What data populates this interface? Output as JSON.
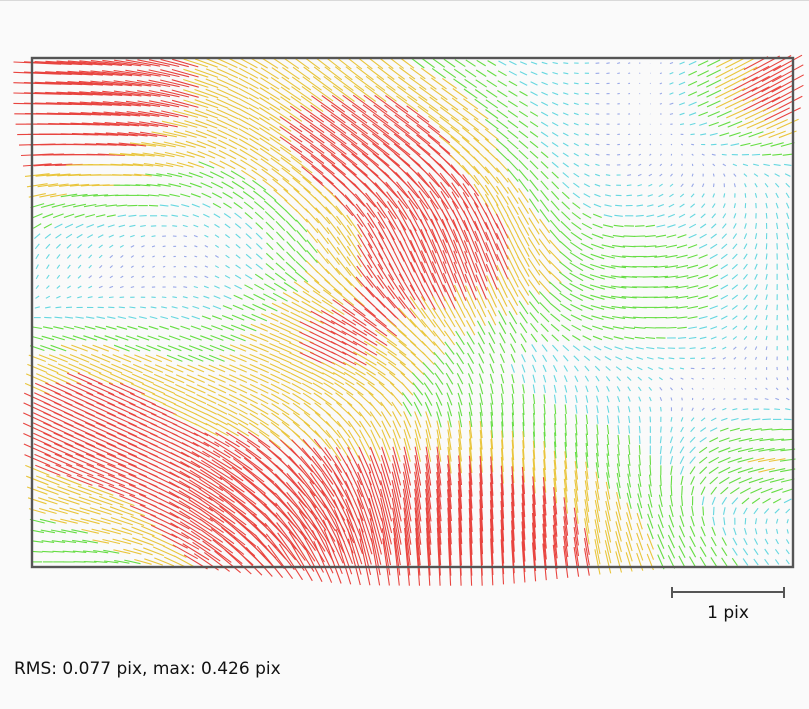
{
  "chart_data": {
    "type": "vector-field",
    "title": "",
    "xlabel": "",
    "ylabel": "",
    "grid": false,
    "legend": null,
    "colors": {
      "frame": "#555555",
      "high": "#e8443f",
      "mid_high": "#e9c53b",
      "mid": "#66dd44",
      "low": "#66d7e0",
      "very_low": "#9aa9e8",
      "scalebar": "#555555",
      "background": "#fafafa"
    },
    "magnitude_stats_pix": {
      "rms": 0.077,
      "max": 0.426
    },
    "scale_bar": {
      "length_pix": 1,
      "label": "1 pix"
    },
    "summary": "RMS: 0.077 pix, max: 0.426 pix"
  }
}
